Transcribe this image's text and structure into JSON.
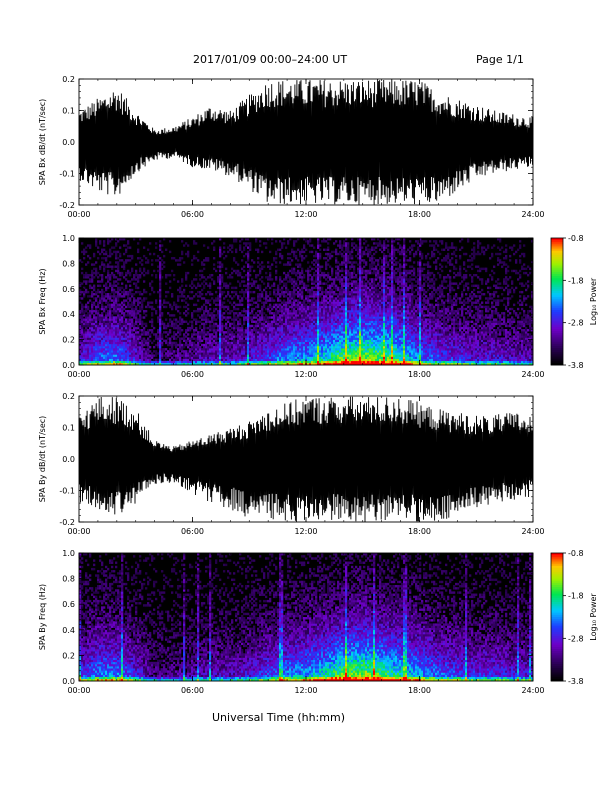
{
  "header": {
    "title": "2017/01/09   00:00–24:00 UT",
    "page": "Page 1/1"
  },
  "xaxis_label": "Universal Time (hh:mm)",
  "chart_data": [
    {
      "type": "line",
      "ylabel": "SPA Bx dB/dt (nT/sec)",
      "xlim_hours": [
        0,
        24
      ],
      "xticks": [
        "00:00",
        "06:00",
        "12:00",
        "18:00",
        "24:00"
      ],
      "ylim": [
        -0.2,
        0.2
      ],
      "yticks": [
        "-0.2",
        "-0.1",
        "0.0",
        "0.1",
        "0.2"
      ],
      "envelope_hours": [
        0,
        1,
        2,
        3,
        4,
        5,
        6,
        7,
        8,
        9,
        10,
        11,
        12,
        13,
        14,
        15,
        16,
        17,
        18,
        19,
        20,
        21,
        22,
        23,
        24
      ],
      "envelope_max": [
        0.1,
        0.14,
        0.18,
        0.1,
        0.04,
        0.05,
        0.08,
        0.12,
        0.1,
        0.15,
        0.2,
        0.2,
        0.2,
        0.2,
        0.2,
        0.2,
        0.2,
        0.2,
        0.2,
        0.16,
        0.14,
        0.12,
        0.1,
        0.09,
        0.08
      ],
      "envelope_min": [
        -0.12,
        -0.16,
        -0.18,
        -0.1,
        -0.06,
        -0.05,
        -0.08,
        -0.09,
        -0.11,
        -0.15,
        -0.2,
        -0.2,
        -0.2,
        -0.2,
        -0.2,
        -0.2,
        -0.2,
        -0.2,
        -0.2,
        -0.2,
        -0.16,
        -0.12,
        -0.1,
        -0.09,
        -0.08
      ]
    },
    {
      "type": "heatmap",
      "ylabel": "SPA Bx Freq (Hz)",
      "xlim_hours": [
        0,
        24
      ],
      "xticks": [
        "00:00",
        "06:00",
        "12:00",
        "18:00",
        "24:00"
      ],
      "ylim": [
        0,
        1.0
      ],
      "yticks": [
        "0.0",
        "0.2",
        "0.4",
        "0.6",
        "0.8",
        "1.0"
      ],
      "colorbar_label": "Log₁₀ Power",
      "colorbar_ticks": [
        "-0.8",
        "-1.8",
        "-2.8",
        "-3.8"
      ],
      "colorbar_range": [
        -3.8,
        -0.8
      ],
      "activity_hours": [
        0,
        1,
        2,
        3,
        4,
        5,
        6,
        7,
        8,
        9,
        10,
        11,
        12,
        13,
        14,
        15,
        16,
        17,
        18,
        19,
        20,
        21,
        22,
        23,
        24
      ],
      "activity_level": [
        0.35,
        0.5,
        0.55,
        0.35,
        0.15,
        0.2,
        0.25,
        0.3,
        0.3,
        0.35,
        0.45,
        0.55,
        0.6,
        0.7,
        0.85,
        0.9,
        0.85,
        0.75,
        0.55,
        0.45,
        0.4,
        0.35,
        0.35,
        0.3,
        0.3
      ]
    },
    {
      "type": "line",
      "ylabel": "SPA By dB/dt (nT/sec)",
      "xlim_hours": [
        0,
        24
      ],
      "xticks": [
        "00:00",
        "06:00",
        "12:00",
        "18:00",
        "24:00"
      ],
      "ylim": [
        -0.2,
        0.2
      ],
      "yticks": [
        "-0.2",
        "-0.1",
        "0.0",
        "0.1",
        "0.2"
      ],
      "envelope_hours": [
        0,
        1,
        2,
        3,
        4,
        5,
        6,
        7,
        8,
        9,
        10,
        11,
        12,
        13,
        14,
        15,
        16,
        17,
        18,
        19,
        20,
        21,
        22,
        23,
        24
      ],
      "envelope_max": [
        0.14,
        0.2,
        0.2,
        0.16,
        0.06,
        0.04,
        0.06,
        0.08,
        0.1,
        0.12,
        0.16,
        0.18,
        0.2,
        0.2,
        0.2,
        0.2,
        0.2,
        0.2,
        0.18,
        0.16,
        0.15,
        0.14,
        0.14,
        0.15,
        0.14
      ],
      "envelope_min": [
        -0.14,
        -0.16,
        -0.18,
        -0.14,
        -0.08,
        -0.08,
        -0.11,
        -0.14,
        -0.16,
        -0.19,
        -0.2,
        -0.2,
        -0.2,
        -0.2,
        -0.2,
        -0.2,
        -0.2,
        -0.2,
        -0.2,
        -0.2,
        -0.18,
        -0.16,
        -0.14,
        -0.13,
        -0.12
      ]
    },
    {
      "type": "heatmap",
      "ylabel": "SPA By Freq (Hz)",
      "xlim_hours": [
        0,
        24
      ],
      "xticks": [
        "00:00",
        "06:00",
        "12:00",
        "18:00",
        "24:00"
      ],
      "ylim": [
        0,
        1.0
      ],
      "yticks": [
        "0.0",
        "0.2",
        "0.4",
        "0.6",
        "0.8",
        "1.0"
      ],
      "colorbar_label": "Log₁₀ Power",
      "colorbar_ticks": [
        "-0.8",
        "-1.8",
        "-2.8",
        "-3.8"
      ],
      "colorbar_range": [
        -3.8,
        -0.8
      ],
      "activity_hours": [
        0,
        1,
        2,
        3,
        4,
        5,
        6,
        7,
        8,
        9,
        10,
        11,
        12,
        13,
        14,
        15,
        16,
        17,
        18,
        19,
        20,
        21,
        22,
        23,
        24
      ],
      "activity_level": [
        0.4,
        0.55,
        0.55,
        0.4,
        0.2,
        0.2,
        0.25,
        0.3,
        0.3,
        0.35,
        0.45,
        0.55,
        0.6,
        0.7,
        0.85,
        0.9,
        0.8,
        0.7,
        0.6,
        0.5,
        0.45,
        0.4,
        0.4,
        0.35,
        0.35
      ]
    }
  ]
}
